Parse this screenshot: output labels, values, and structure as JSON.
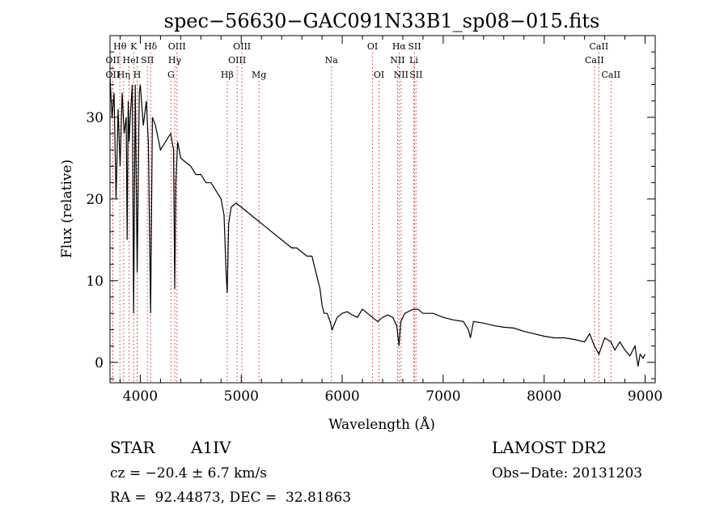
{
  "chart_data": {
    "type": "line",
    "title": "spec−56630−GAC091N33B1_sp08−015.fits",
    "xlabel": "Wavelength (Å)",
    "ylabel": "Flux (relative)",
    "xlim": [
      3700,
      9100
    ],
    "ylim": [
      -2.5,
      40
    ],
    "xticks": [
      4000,
      5000,
      6000,
      7000,
      8000,
      9000
    ],
    "yticks": [
      0,
      10,
      20,
      30
    ],
    "grid": false,
    "series": [
      {
        "x": [
          3700,
          3720,
          3740,
          3760,
          3780,
          3800,
          3820,
          3840,
          3860,
          3870,
          3880,
          3890,
          3900,
          3920,
          3934,
          3950,
          3969,
          3990,
          4000,
          4030,
          4060,
          4080,
          4102,
          4120,
          4150,
          4200,
          4250,
          4300,
          4330,
          4341,
          4352,
          4370,
          4400,
          4450,
          4500,
          4550,
          4600,
          4650,
          4700,
          4750,
          4800,
          4830,
          4850,
          4861,
          4875,
          4900,
          4950,
          5000,
          5050,
          5100,
          5150,
          5200,
          5250,
          5300,
          5350,
          5400,
          5450,
          5500,
          5550,
          5600,
          5650,
          5700,
          5740,
          5780,
          5800,
          5820,
          5850,
          5880,
          5900,
          5950,
          6000,
          6050,
          6100,
          6150,
          6200,
          6250,
          6300,
          6350,
          6400,
          6450,
          6500,
          6540,
          6563,
          6580,
          6620,
          6700,
          6750,
          6800,
          6900,
          7000,
          7100,
          7200,
          7250,
          7270,
          7300,
          7400,
          7500,
          7600,
          7700,
          7800,
          7900,
          8000,
          8100,
          8200,
          8300,
          8400,
          8450,
          8498,
          8542,
          8600,
          8662,
          8700,
          8750,
          8800,
          8850,
          8900,
          8930,
          8950,
          8980,
          9000
        ],
        "y": [
          35,
          30,
          33,
          20,
          31,
          24,
          33,
          28,
          30,
          15,
          32,
          27,
          30,
          34,
          6,
          34,
          11,
          33,
          34,
          29,
          32,
          27,
          6,
          30,
          29,
          26,
          27,
          28,
          26,
          9,
          22,
          27,
          25,
          24.5,
          24,
          23,
          23,
          22,
          22,
          21,
          20,
          18,
          11,
          8.5,
          17,
          19,
          19.5,
          19,
          18.5,
          18,
          17.5,
          17,
          16.5,
          16,
          15.5,
          15,
          14.5,
          14,
          14,
          13.5,
          13,
          13,
          11,
          9,
          7,
          6,
          6,
          5,
          4,
          5.5,
          6,
          6.2,
          5.8,
          5.5,
          6.5,
          6,
          5.5,
          5,
          5.5,
          5.8,
          5.5,
          4.5,
          2,
          5,
          6,
          6.5,
          6.5,
          6,
          6,
          5.5,
          5.2,
          5,
          4,
          3,
          5,
          4.8,
          4.5,
          4.3,
          4.2,
          3.8,
          3.5,
          3.2,
          3,
          3,
          2.8,
          2.5,
          3.5,
          2,
          1,
          3,
          2.5,
          1.5,
          2.5,
          1.5,
          0.8,
          2,
          -0.5,
          1,
          0.5,
          1
        ]
      }
    ],
    "line_markers": [
      {
        "label": "Hθ",
        "x": 3798,
        "row": 0
      },
      {
        "label": "K",
        "x": 3934,
        "row": 0
      },
      {
        "label": "Hδ",
        "x": 4102,
        "row": 0
      },
      {
        "label": "OII",
        "x": 3727,
        "row": 1
      },
      {
        "label": "He",
        "x": 3889,
        "row": 1
      },
      {
        "label": "I",
        "x": 3970,
        "row": 1
      },
      {
        "label": "SII",
        "x": 4070,
        "row": 1
      },
      {
        "label": "OII",
        "x": 3727,
        "row": 2
      },
      {
        "label": "Hη",
        "x": 3835,
        "row": 2
      },
      {
        "label": "H",
        "x": 3969,
        "row": 2
      },
      {
        "label": "OIII",
        "x": 4363,
        "row": 0
      },
      {
        "label": "Hγ",
        "x": 4341,
        "row": 1
      },
      {
        "label": "G",
        "x": 4304,
        "row": 2
      },
      {
        "label": "Hβ",
        "x": 4861,
        "row": 2
      },
      {
        "label": "OIII",
        "x": 5007,
        "row": 0
      },
      {
        "label": "OIII",
        "x": 4959,
        "row": 1
      },
      {
        "label": "Mg",
        "x": 5175,
        "row": 2
      },
      {
        "label": "Na",
        "x": 5893,
        "row": 1
      },
      {
        "label": "OI",
        "x": 6300,
        "row": 0
      },
      {
        "label": "OI",
        "x": 6364,
        "row": 2
      },
      {
        "label": "Hα",
        "x": 6563,
        "row": 0
      },
      {
        "label": "SII",
        "x": 6716,
        "row": 0
      },
      {
        "label": "NII",
        "x": 6548,
        "row": 1
      },
      {
        "label": "Li",
        "x": 6708,
        "row": 1
      },
      {
        "label": "NII",
        "x": 6583,
        "row": 2
      },
      {
        "label": "SII",
        "x": 6731,
        "row": 2
      },
      {
        "label": "CaII",
        "x": 8542,
        "row": 0
      },
      {
        "label": "CaII",
        "x": 8498,
        "row": 1
      },
      {
        "label": "CaII",
        "x": 8662,
        "row": 2
      }
    ]
  },
  "footer": {
    "object_type": "STAR",
    "spectral_class": "A1IV",
    "survey": "LAMOST DR2",
    "redshift": "cz = −20.4 ± 6.7 km/s",
    "obs_date": "Obs−Date: 20131203",
    "coords": "RA =  92.44873, DEC =  32.81863"
  },
  "colors": {
    "line_marker": "#e03030",
    "spectrum": "#000000"
  }
}
